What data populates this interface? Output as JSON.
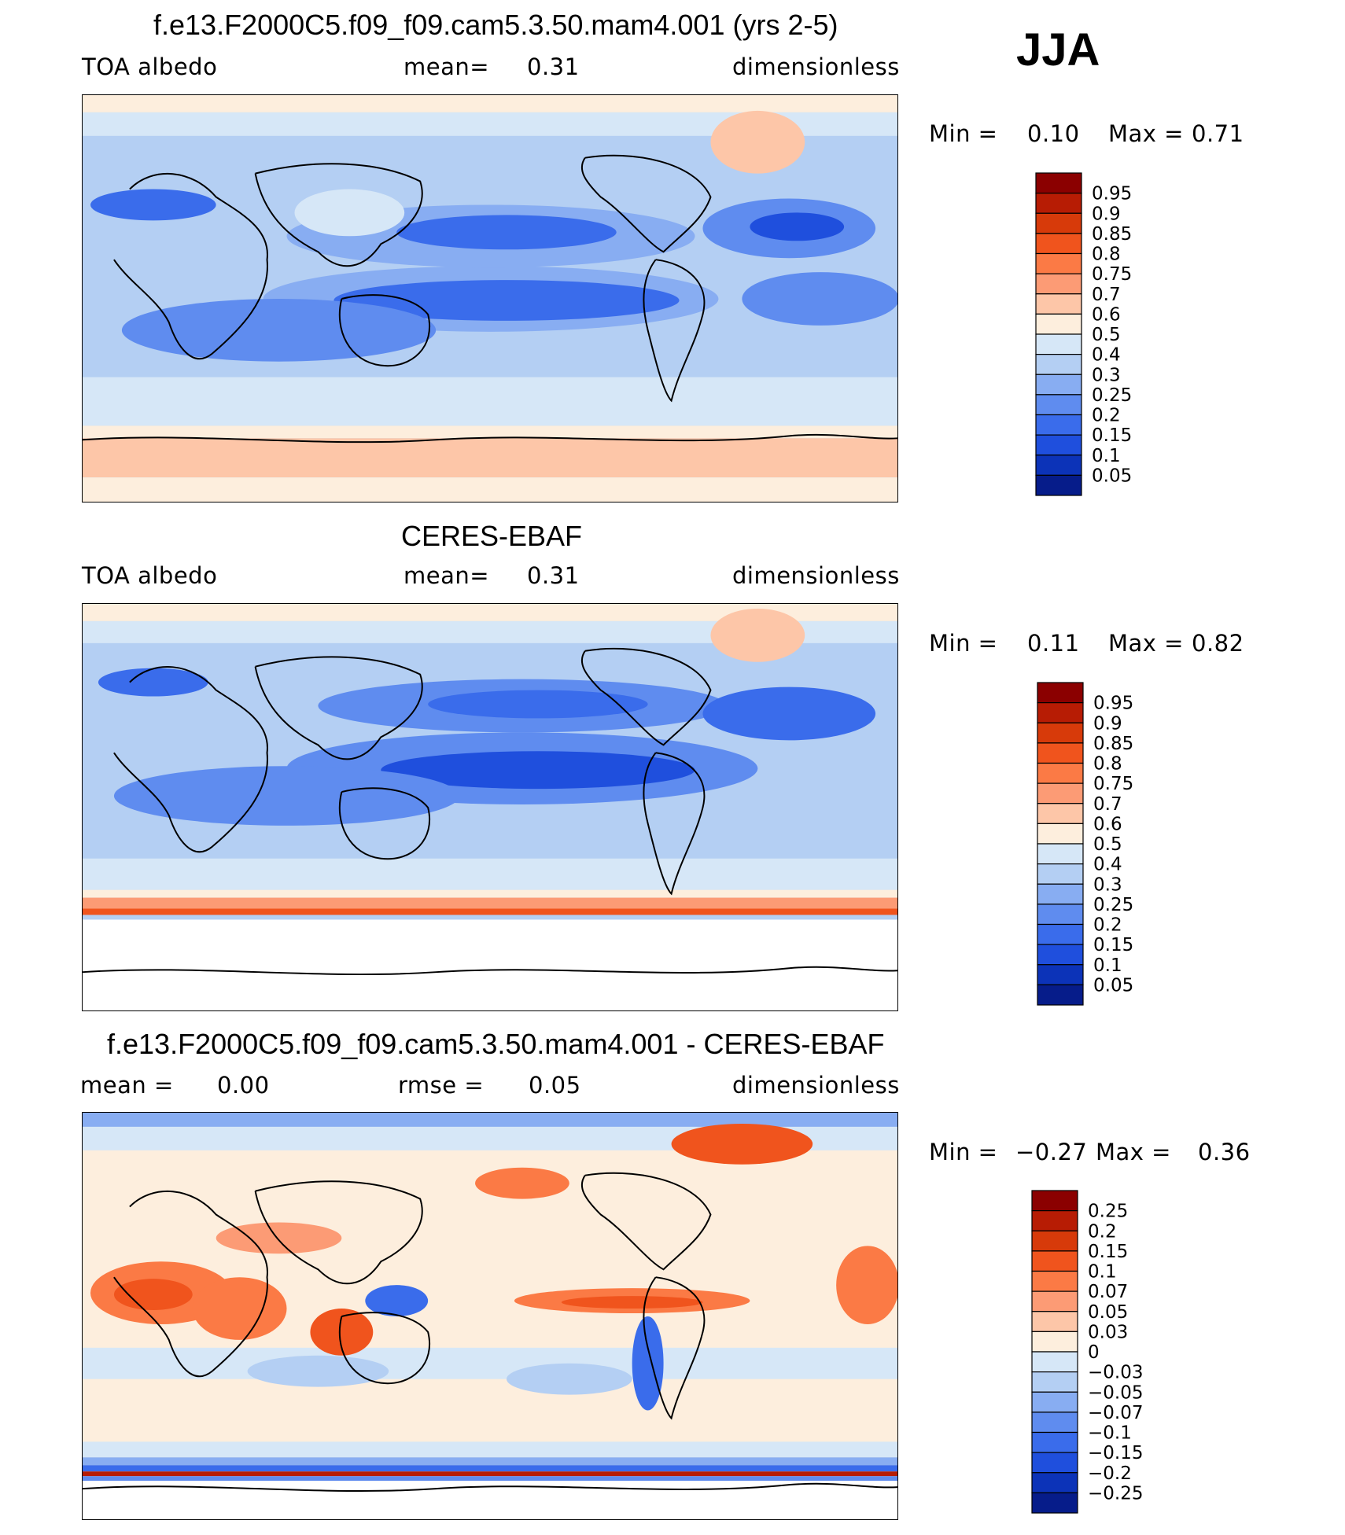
{
  "season": "JJA",
  "panels": [
    {
      "title": "f.e13.F2000C5.f09_f09.cam5.3.50.mam4.001 (yrs 2-5)",
      "left_label": "TOA albedo",
      "center_label": "mean=",
      "center_value": "0.31",
      "right_label": "dimensionless",
      "min_label": "Min =",
      "min_value": "0.10",
      "max_label": "Max =",
      "max_value": "0.71",
      "colorbar": {
        "labels": [
          "0.95",
          "0.9",
          "0.85",
          "0.8",
          "0.75",
          "0.7",
          "0.6",
          "0.5",
          "0.4",
          "0.3",
          "0.25",
          "0.2",
          "0.15",
          "0.1",
          "0.05"
        ],
        "colors": [
          "#8b0000",
          "#b71c04",
          "#d73a0a",
          "#f0541d",
          "#fb7a45",
          "#fc9b75",
          "#fdc6a8",
          "#fdeedd",
          "#d6e7f7",
          "#b4cff3",
          "#88adf2",
          "#5f8cef",
          "#3a6ceb",
          "#1f4fdd",
          "#0c33b8",
          "#061c8a"
        ]
      }
    },
    {
      "title": "CERES-EBAF",
      "left_label": "TOA albedo",
      "center_label": "mean=",
      "center_value": "0.31",
      "right_label": "dimensionless",
      "min_label": "Min =",
      "min_value": "0.11",
      "max_label": "Max =",
      "max_value": "0.82",
      "colorbar": {
        "labels": [
          "0.95",
          "0.9",
          "0.85",
          "0.8",
          "0.75",
          "0.7",
          "0.6",
          "0.5",
          "0.4",
          "0.3",
          "0.25",
          "0.2",
          "0.15",
          "0.1",
          "0.05"
        ],
        "colors": [
          "#8b0000",
          "#b71c04",
          "#d73a0a",
          "#f0541d",
          "#fb7a45",
          "#fc9b75",
          "#fdc6a8",
          "#fdeedd",
          "#d6e7f7",
          "#b4cff3",
          "#88adf2",
          "#5f8cef",
          "#3a6ceb",
          "#1f4fdd",
          "#0c33b8",
          "#061c8a"
        ]
      }
    },
    {
      "title": "f.e13.F2000C5.f09_f09.cam5.3.50.mam4.001 - CERES-EBAF",
      "left_label": "mean =",
      "left_value": "0.00",
      "center_label": "rmse =",
      "center_value": "0.05",
      "right_label": "dimensionless",
      "min_label": "Min =",
      "min_value": "−0.27",
      "max_label": "Max =",
      "max_value": "0.36",
      "colorbar": {
        "labels": [
          "0.25",
          "0.2",
          "0.15",
          "0.1",
          "0.07",
          "0.05",
          "0.03",
          "0",
          "−0.03",
          "−0.05",
          "−0.07",
          "−0.1",
          "−0.15",
          "−0.2",
          "−0.25"
        ],
        "colors": [
          "#8b0000",
          "#b71c04",
          "#d73a0a",
          "#f0541d",
          "#fb7a45",
          "#fc9b75",
          "#fdc6a8",
          "#fdeedd",
          "#d6e7f7",
          "#b4cff3",
          "#88adf2",
          "#5f8cef",
          "#3a6ceb",
          "#1f4fdd",
          "#0c33b8",
          "#061c8a"
        ]
      }
    }
  ]
}
